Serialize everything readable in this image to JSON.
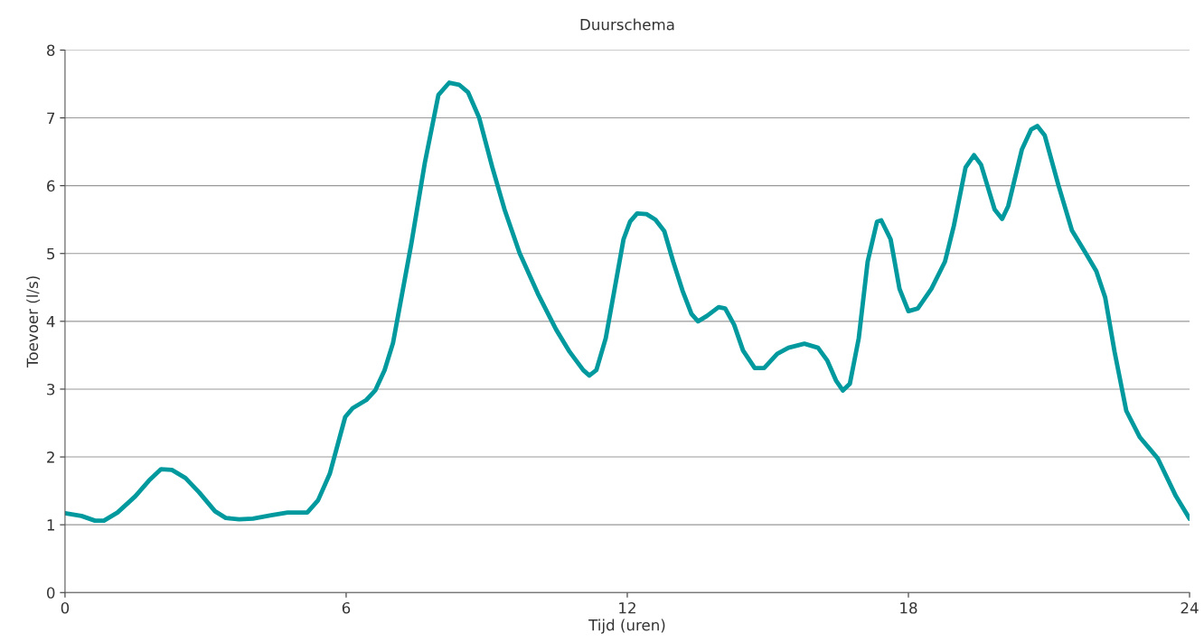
{
  "chart_data": {
    "type": "line",
    "title": "Duurschema",
    "xlabel": "Tijd (uren)",
    "ylabel": "Toevoer (l/s)",
    "xlim": [
      0,
      24
    ],
    "xticks": [
      0,
      6,
      12,
      18,
      24
    ],
    "ylim": [
      0,
      8
    ],
    "yticks": [
      0,
      1,
      2,
      3,
      4,
      5,
      6,
      7,
      8
    ],
    "grid": "y",
    "legend": false,
    "series": [
      {
        "color": "#00999e",
        "x": [
          0,
          0.35,
          0.64,
          0.83,
          1.12,
          1.5,
          1.79,
          2.05,
          2.28,
          2.57,
          2.86,
          3.2,
          3.43,
          3.72,
          4.01,
          4.4,
          4.75,
          5.17,
          5.4,
          5.65,
          5.98,
          6.14,
          6.43,
          6.62,
          6.82,
          7.0,
          7.39,
          7.68,
          7.97,
          8.2,
          8.41,
          8.6,
          8.84,
          9.12,
          9.38,
          9.7,
          10.09,
          10.48,
          10.77,
          11.06,
          11.19,
          11.34,
          11.54,
          11.73,
          11.92,
          12.06,
          12.21,
          12.41,
          12.6,
          12.79,
          12.98,
          13.18,
          13.37,
          13.51,
          13.7,
          13.95,
          14.09,
          14.28,
          14.47,
          14.72,
          14.92,
          15.2,
          15.44,
          15.78,
          16.07,
          16.27,
          16.46,
          16.6,
          16.75,
          16.94,
          17.13,
          17.33,
          17.42,
          17.62,
          17.81,
          18.0,
          18.2,
          18.49,
          18.78,
          18.97,
          19.22,
          19.4,
          19.55,
          19.84,
          20.0,
          20.13,
          20.42,
          20.62,
          20.75,
          20.91,
          21.2,
          21.49,
          21.78,
          22.01,
          22.2,
          22.4,
          22.65,
          22.94,
          23.32,
          23.71,
          24.0
        ],
        "values": [
          1.17,
          1.13,
          1.06,
          1.06,
          1.18,
          1.42,
          1.65,
          1.82,
          1.81,
          1.69,
          1.48,
          1.2,
          1.1,
          1.08,
          1.09,
          1.14,
          1.18,
          1.18,
          1.36,
          1.75,
          2.59,
          2.72,
          2.84,
          2.98,
          3.28,
          3.68,
          5.14,
          6.34,
          7.34,
          7.52,
          7.49,
          7.38,
          7.0,
          6.27,
          5.65,
          5.01,
          4.41,
          3.88,
          3.55,
          3.28,
          3.2,
          3.28,
          3.75,
          4.48,
          5.21,
          5.47,
          5.59,
          5.58,
          5.5,
          5.33,
          4.88,
          4.45,
          4.11,
          4.0,
          4.08,
          4.21,
          4.19,
          3.95,
          3.57,
          3.31,
          3.31,
          3.52,
          3.61,
          3.67,
          3.61,
          3.42,
          3.12,
          2.98,
          3.08,
          3.75,
          4.88,
          5.47,
          5.49,
          5.21,
          4.48,
          4.15,
          4.19,
          4.48,
          4.88,
          5.41,
          6.27,
          6.45,
          6.31,
          5.65,
          5.51,
          5.7,
          6.53,
          6.83,
          6.88,
          6.74,
          6.01,
          5.34,
          5.01,
          4.74,
          4.35,
          3.55,
          2.68,
          2.29,
          1.98,
          1.42,
          1.09
        ]
      }
    ]
  }
}
